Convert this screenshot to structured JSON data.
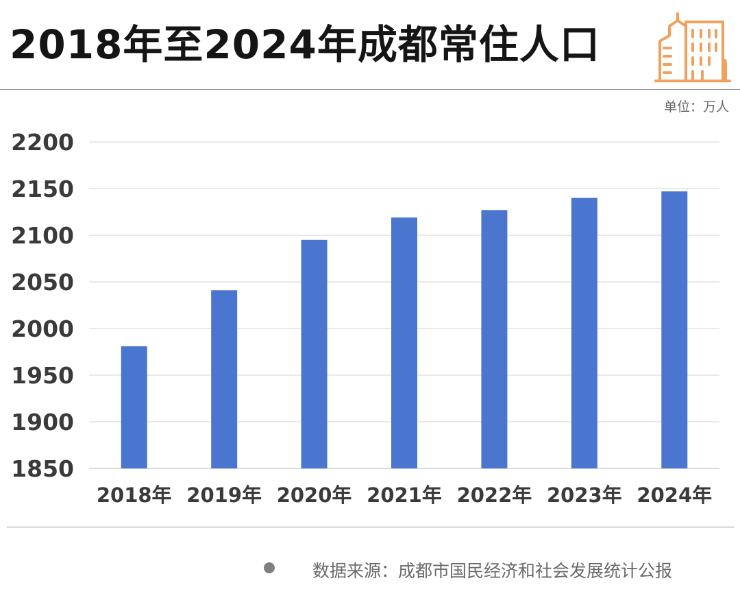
{
  "header": {
    "title": "2018年至2024年成都常住人口",
    "unit": "单位：万人"
  },
  "footer": {
    "source": "数据来源：成都市国民经济和社会发展统计公报"
  },
  "colors": {
    "bar": "#4a76cf",
    "grid": "#e2e2e2",
    "logo": "#f0a15e"
  },
  "chart_data": {
    "type": "bar",
    "categories": [
      "2018年",
      "2019年",
      "2020年",
      "2021年",
      "2022年",
      "2023年",
      "2024年"
    ],
    "values": [
      1981,
      2041,
      2095,
      2119,
      2127,
      2140,
      2147
    ],
    "yticks": [
      "1850",
      "1900",
      "1950",
      "2000",
      "2050",
      "2100",
      "2150",
      "2200"
    ],
    "ylim": [
      1850,
      2200
    ],
    "grid": true,
    "legend": "none"
  }
}
